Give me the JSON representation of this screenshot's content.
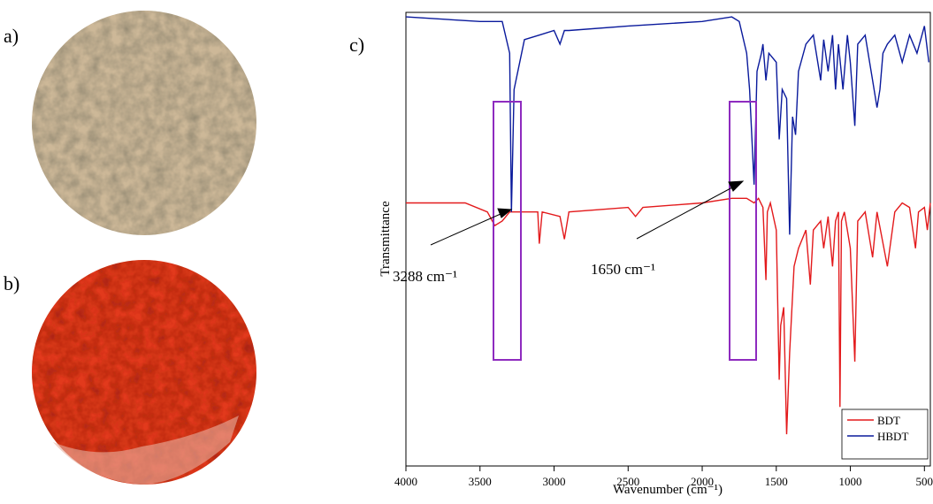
{
  "chart_data": {
    "type": "line",
    "panel_labels": [
      "a)",
      "b)",
      "c)"
    ],
    "xlabel": "Wavenumber (cm⁻¹)",
    "ylabel": "Transmittance",
    "xlim": [
      4000,
      460
    ],
    "ylim": [
      0,
      100
    ],
    "xticks": [
      4000,
      3500,
      3000,
      2500,
      2000,
      1500,
      1000,
      500
    ],
    "legend": "lower right",
    "annotations": [
      "3288 cm⁻¹",
      "1650 cm⁻¹"
    ],
    "series": [
      {
        "name": "BDT",
        "color": "#e31a1c",
        "x": [
          4000,
          3600,
          3450,
          3400,
          3350,
          3300,
          3200,
          3110,
          3100,
          3080,
          2960,
          2930,
          2900,
          2500,
          2450,
          2400,
          2000,
          1800,
          1700,
          1650,
          1620,
          1590,
          1570,
          1560,
          1540,
          1500,
          1480,
          1470,
          1450,
          1430,
          1410,
          1380,
          1350,
          1300,
          1270,
          1250,
          1200,
          1180,
          1150,
          1120,
          1100,
          1080,
          1070,
          1060,
          1040,
          1000,
          970,
          950,
          900,
          850,
          820,
          750,
          700,
          650,
          600,
          560,
          540,
          500,
          480,
          460
        ],
        "values": [
          58,
          58,
          56,
          53,
          54,
          56,
          56,
          56,
          49,
          56,
          55,
          50,
          56,
          57,
          55,
          57,
          58,
          59,
          59,
          58,
          59,
          57,
          41,
          56,
          58,
          52,
          19,
          31,
          35,
          7,
          25,
          44,
          48,
          52,
          40,
          52,
          54,
          48,
          55,
          44,
          54,
          56,
          13,
          54,
          56,
          48,
          23,
          54,
          56,
          46,
          56,
          44,
          56,
          58,
          57,
          48,
          56,
          57,
          52,
          58
        ]
      },
      {
        "name": "HBDT",
        "color": "#0a1a9c",
        "x": [
          4000,
          3500,
          3350,
          3300,
          3288,
          3270,
          3200,
          3100,
          3000,
          2960,
          2930,
          2900,
          2500,
          2000,
          1800,
          1750,
          1700,
          1680,
          1650,
          1630,
          1600,
          1590,
          1570,
          1550,
          1500,
          1480,
          1460,
          1430,
          1410,
          1390,
          1370,
          1350,
          1300,
          1250,
          1200,
          1180,
          1150,
          1120,
          1100,
          1080,
          1050,
          1020,
          1000,
          970,
          950,
          900,
          850,
          820,
          800,
          780,
          750,
          700,
          650,
          600,
          550,
          500,
          470
        ],
        "values": [
          99,
          98,
          98,
          91,
          56,
          83,
          94,
          95,
          96,
          93,
          96,
          96,
          97,
          98,
          99,
          98,
          91,
          83,
          62,
          87,
          91,
          93,
          85,
          91,
          89,
          72,
          83,
          81,
          51,
          77,
          73,
          87,
          93,
          95,
          85,
          94,
          87,
          95,
          83,
          93,
          83,
          95,
          89,
          75,
          93,
          95,
          85,
          79,
          83,
          91,
          93,
          95,
          89,
          95,
          91,
          97,
          89
        ]
      }
    ]
  }
}
